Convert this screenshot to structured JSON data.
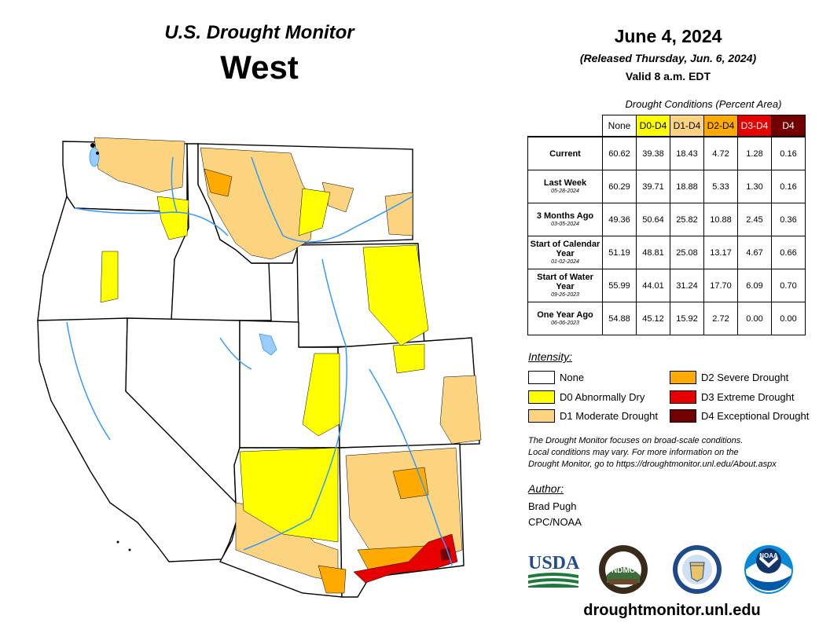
{
  "header": {
    "title": "U.S. Drought Monitor",
    "region": "West",
    "date": "June 4, 2024",
    "released": "(Released Thursday, Jun. 6, 2024)",
    "valid": "Valid 8 a.m. EDT"
  },
  "table": {
    "caption": "Drought Conditions (Percent Area)",
    "columns": [
      "None",
      "D0-D4",
      "D1-D4",
      "D2-D4",
      "D3-D4",
      "D4"
    ],
    "rows": [
      {
        "label": "Current",
        "sublabel": "",
        "values": [
          "60.62",
          "39.38",
          "18.43",
          "4.72",
          "1.28",
          "0.16"
        ]
      },
      {
        "label": "Last Week",
        "sublabel": "05-28-2024",
        "values": [
          "60.29",
          "39.71",
          "18.88",
          "5.33",
          "1.30",
          "0.16"
        ]
      },
      {
        "label": "3 Months Ago",
        "sublabel": "03-05-2024",
        "values": [
          "49.36",
          "50.64",
          "25.82",
          "10.88",
          "2.45",
          "0.36"
        ]
      },
      {
        "label": "Start of Calendar Year",
        "sublabel": "01-02-2024",
        "values": [
          "51.19",
          "48.81",
          "25.08",
          "13.17",
          "4.67",
          "0.66"
        ]
      },
      {
        "label": "Start of Water Year",
        "sublabel": "09-26-2023",
        "values": [
          "55.99",
          "44.01",
          "31.24",
          "17.70",
          "6.09",
          "0.70"
        ]
      },
      {
        "label": "One Year Ago",
        "sublabel": "06-06-2023",
        "values": [
          "54.88",
          "45.12",
          "15.92",
          "2.72",
          "0.00",
          "0.00"
        ]
      }
    ]
  },
  "legend": {
    "title": "Intensity:",
    "items": [
      {
        "label": "None",
        "color": "#ffffff"
      },
      {
        "label": "D0 Abnormally Dry",
        "color": "#ffff00"
      },
      {
        "label": "D1 Moderate Drought",
        "color": "#fcd37f"
      },
      {
        "label": "D2 Severe Drought",
        "color": "#ffaa00"
      },
      {
        "label": "D3 Extreme Drought",
        "color": "#e60000"
      },
      {
        "label": "D4 Exceptional Drought",
        "color": "#730000"
      }
    ]
  },
  "note": {
    "line1": "The Drought Monitor focuses on broad-scale conditions.",
    "line2": "Local conditions may vary. For more information on the",
    "line3": "Drought Monitor, go to https://droughtmonitor.unl.edu/About.aspx"
  },
  "author": {
    "title": "Author:",
    "name": "Brad Pugh",
    "org": "CPC/NOAA"
  },
  "logos": {
    "usda": "USDA",
    "ndmc": "NDMC",
    "noaa": "NOAA"
  },
  "site": "droughtmonitor.unl.edu",
  "colors": {
    "none": "#ffffff",
    "d0": "#ffff00",
    "d1": "#fcd37f",
    "d2": "#ffaa00",
    "d3": "#e60000",
    "d4": "#730000",
    "river": "#3399ff",
    "lake": "#99ccff"
  }
}
